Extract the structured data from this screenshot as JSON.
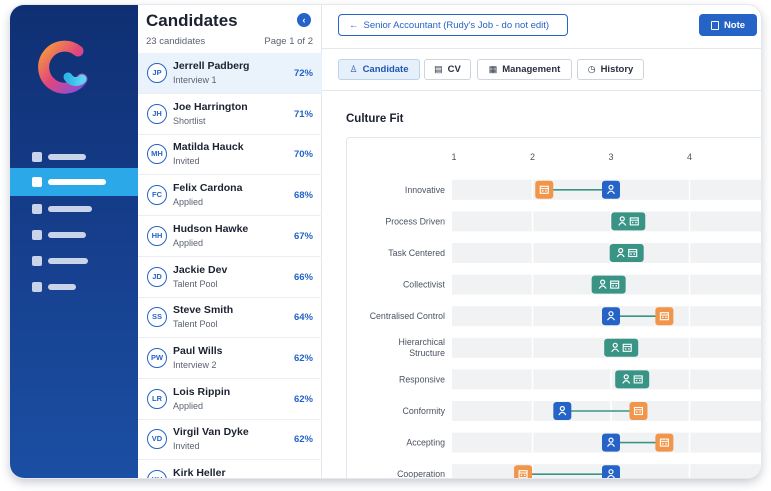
{
  "rail": {
    "items": [
      {
        "icon": "dashboard-icon",
        "active": false
      },
      {
        "icon": "candidates-icon",
        "active": true
      },
      {
        "icon": "jobs-icon",
        "active": false
      },
      {
        "icon": "reports-icon",
        "active": false
      },
      {
        "icon": "messages-icon",
        "active": false
      },
      {
        "icon": "settings-icon",
        "active": false
      }
    ]
  },
  "candidates": {
    "title": "Candidates",
    "count_label": "23 candidates",
    "page_label": "Page 1 of 2",
    "items": [
      {
        "initials": "JP",
        "name": "Jerrell Padberg",
        "status": "Interview 1",
        "score": "72%",
        "selected": true
      },
      {
        "initials": "JH",
        "name": "Joe Harrington",
        "status": "Shortlist",
        "score": "71%"
      },
      {
        "initials": "MH",
        "name": "Matilda Hauck",
        "status": "Invited",
        "score": "70%"
      },
      {
        "initials": "FC",
        "name": "Felix Cardona",
        "status": "Applied",
        "score": "68%"
      },
      {
        "initials": "HH",
        "name": "Hudson Hawke",
        "status": "Applied",
        "score": "67%"
      },
      {
        "initials": "JD",
        "name": "Jackie Dev",
        "status": "Talent Pool",
        "score": "66%"
      },
      {
        "initials": "SS",
        "name": "Steve Smith",
        "status": "Talent Pool",
        "score": "64%"
      },
      {
        "initials": "PW",
        "name": "Paul Wills",
        "status": "Interview 2",
        "score": "62%"
      },
      {
        "initials": "LR",
        "name": "Lois Rippin",
        "status": "Applied",
        "score": "62%"
      },
      {
        "initials": "VD",
        "name": "Virgil Van Dyke",
        "status": "Invited",
        "score": "62%"
      },
      {
        "initials": "KH",
        "name": "Kirk Heller",
        "status": "",
        "score": ""
      }
    ]
  },
  "header": {
    "job_button": "Senior Accountant (Rudy's Job - do not edit)",
    "note_button": "Note"
  },
  "tabs": [
    {
      "label": "Candidate",
      "icon": "user-icon",
      "glyph": "♙",
      "active": true
    },
    {
      "label": "CV",
      "icon": "document-icon",
      "glyph": "▤",
      "active": false
    },
    {
      "label": "Management",
      "icon": "building-icon",
      "glyph": "▦",
      "active": false
    },
    {
      "label": "History",
      "icon": "clock-icon",
      "glyph": "◷",
      "active": false
    }
  ],
  "section": {
    "title": "Culture Fit"
  },
  "colors": {
    "candidate": "#2563c7",
    "company": "#f0954a",
    "match": "#3a9486",
    "connector": "#3a9486",
    "row_band": "#f1f2f4"
  },
  "chart_data": {
    "type": "scatter",
    "x_ticks": [
      "1",
      "2",
      "3",
      "4"
    ],
    "xlim": [
      1,
      4.9
    ],
    "categories": [
      "Innovative",
      "Process Driven",
      "Task Centered",
      "Collectivist",
      "Centralised Control",
      "Hierarchical Structure",
      "Responsive",
      "Conformity",
      "Accepting",
      "Cooperation"
    ],
    "series": [
      {
        "role": "candidate",
        "values": [
          3.0,
          3.22,
          3.2,
          2.97,
          3.0,
          3.13,
          3.27,
          2.38,
          3.0,
          3.0
        ]
      },
      {
        "role": "company",
        "values": [
          2.15,
          3.22,
          3.2,
          2.97,
          3.68,
          3.13,
          3.27,
          3.35,
          3.68,
          1.88
        ]
      }
    ]
  }
}
